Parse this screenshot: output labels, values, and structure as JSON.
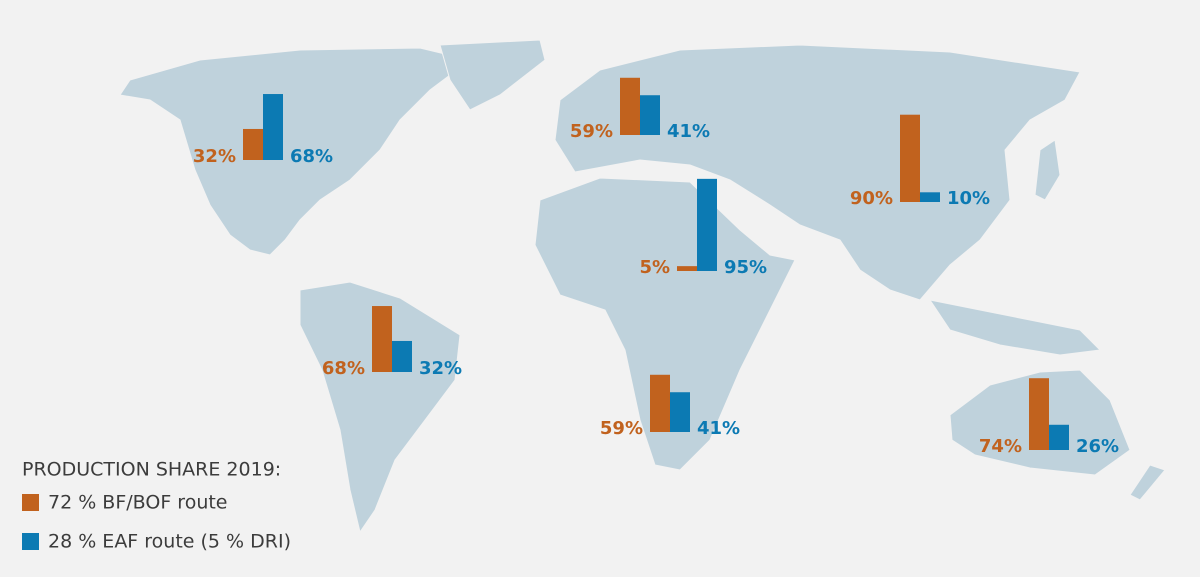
{
  "legend": {
    "title": "PRODUCTION SHARE 2019:",
    "items": [
      {
        "label": "72 % BF/BOF route",
        "color": "#c1621e"
      },
      {
        "label": "28 % EAF route (5 % DRI)",
        "color": "#0c7ab3"
      }
    ]
  },
  "regions": [
    {
      "values": [
        32,
        68
      ],
      "value_labels": [
        "32%",
        "68%"
      ]
    },
    {
      "values": [
        59,
        41
      ],
      "value_labels": [
        "59%",
        "41%"
      ]
    },
    {
      "values": [
        90,
        10
      ],
      "value_labels": [
        "90%",
        "10%"
      ]
    },
    {
      "values": [
        5,
        95
      ],
      "value_labels": [
        "5%",
        "95%"
      ]
    },
    {
      "values": [
        68,
        32
      ],
      "value_labels": [
        "68%",
        "32%"
      ]
    },
    {
      "values": [
        59,
        41
      ],
      "value_labels": [
        "59%",
        "41%"
      ]
    },
    {
      "values": [
        74,
        26
      ],
      "value_labels": [
        "74%",
        "26%"
      ]
    }
  ]
}
